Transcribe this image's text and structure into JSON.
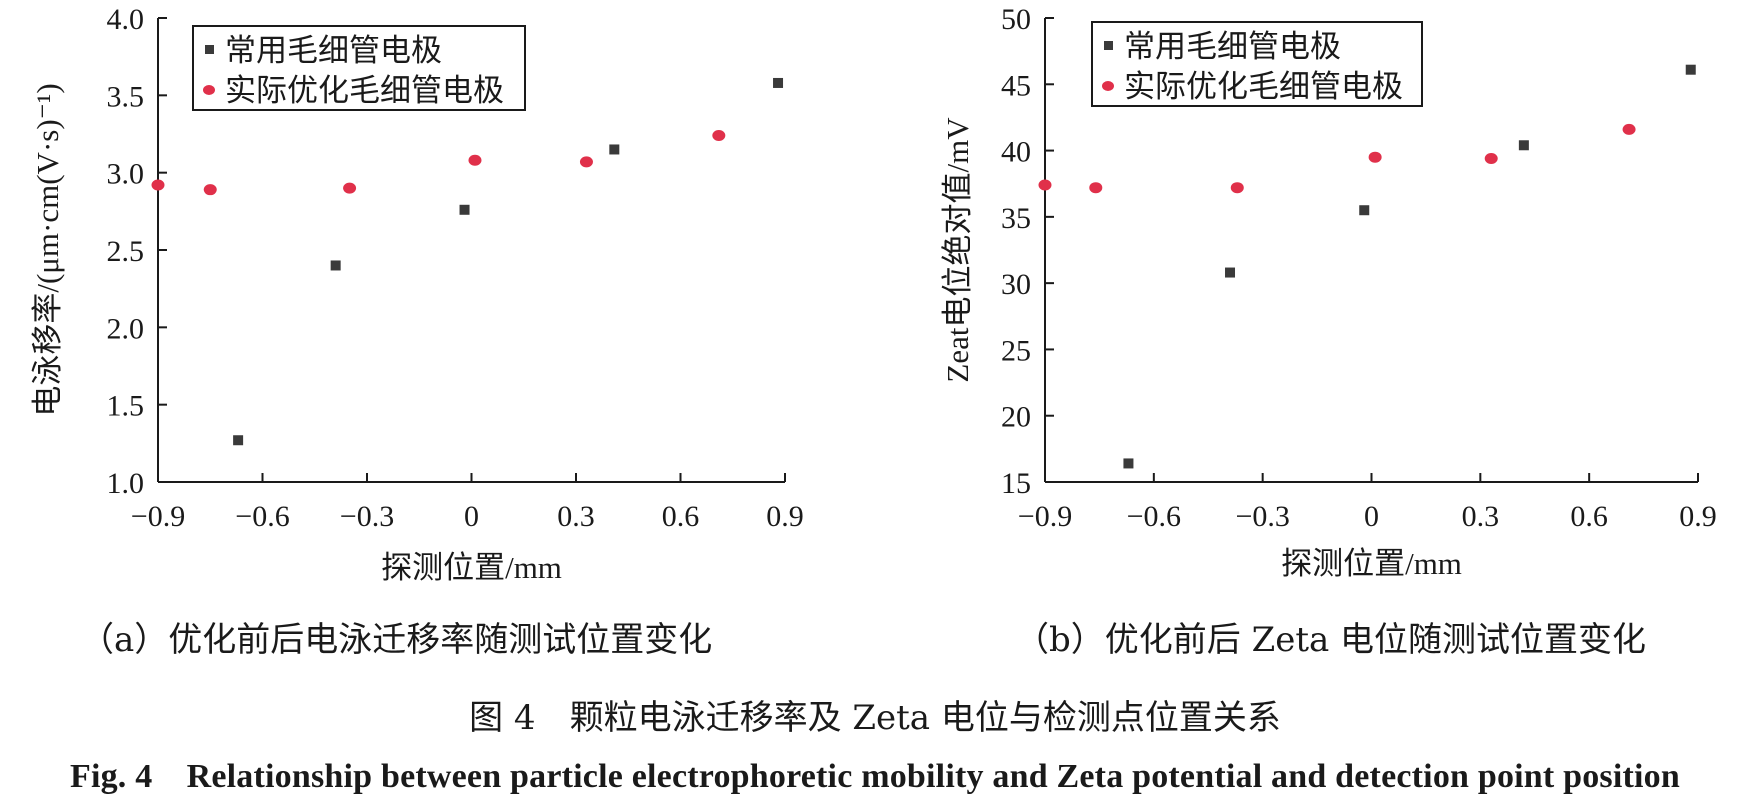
{
  "charts": [
    {
      "id": "a",
      "subcaption": "（a）优化前后电泳迁移率随测试位置变化",
      "chart_data": {
        "type": "scatter",
        "title": "",
        "xlabel": "探测位置/mm",
        "ylabel": "电泳移率/(μm·cm(V·s)⁻¹)",
        "xlim": [
          -0.9,
          0.9
        ],
        "ylim": [
          1.0,
          4.0
        ],
        "xticks": [
          -0.9,
          -0.6,
          -0.3,
          0,
          0.3,
          0.6,
          0.9
        ],
        "xtick_labels": [
          "−0.9",
          "−0.6",
          "−0.3",
          "0",
          "0.3",
          "0.6",
          "0.9"
        ],
        "yticks": [
          1.0,
          1.5,
          2.0,
          2.5,
          3.0,
          3.5,
          4.0
        ],
        "ytick_labels": [
          "1.0",
          "1.5",
          "2.0",
          "2.5",
          "3.0",
          "3.5",
          "4.0"
        ],
        "grid": false,
        "legend_position": "top-left",
        "series": [
          {
            "name": "常用毛细管电极",
            "marker": "square",
            "color": "#3a3a3a",
            "x": [
              -0.67,
              -0.39,
              -0.02,
              0.41,
              0.88
            ],
            "y": [
              1.27,
              2.4,
              2.76,
              3.15,
              3.58
            ]
          },
          {
            "name": "实际优化毛细管电极",
            "marker": "circle",
            "color": "#e0304a",
            "x": [
              -0.9,
              -0.75,
              -0.35,
              0.01,
              0.33,
              0.71
            ],
            "y": [
              2.92,
              2.89,
              2.9,
              3.08,
              3.07,
              3.24
            ]
          }
        ]
      }
    },
    {
      "id": "b",
      "subcaption": "（b）优化前后 Zeta 电位随测试位置变化",
      "chart_data": {
        "type": "scatter",
        "title": "",
        "xlabel": "探测位置/mm",
        "ylabel": "Zeat电位绝对值/mV",
        "xlim": [
          -0.9,
          0.9
        ],
        "ylim": [
          15,
          50
        ],
        "xticks": [
          -0.9,
          -0.6,
          -0.3,
          0,
          0.3,
          0.6,
          0.9
        ],
        "xtick_labels": [
          "−0.9",
          "−0.6",
          "−0.3",
          "0",
          "0.3",
          "0.6",
          "0.9"
        ],
        "yticks": [
          15,
          20,
          25,
          30,
          35,
          40,
          45,
          50
        ],
        "ytick_labels": [
          "15",
          "20",
          "25",
          "30",
          "35",
          "40",
          "45",
          "50"
        ],
        "grid": false,
        "legend_position": "top-left",
        "series": [
          {
            "name": "常用毛细管电极",
            "marker": "square",
            "color": "#3a3a3a",
            "x": [
              -0.67,
              -0.39,
              -0.02,
              0.42,
              0.88
            ],
            "y": [
              16.4,
              30.8,
              35.5,
              40.4,
              46.1
            ]
          },
          {
            "name": "实际优化毛细管电极",
            "marker": "circle",
            "color": "#e0304a",
            "x": [
              -0.9,
              -0.76,
              -0.37,
              0.01,
              0.33,
              0.71
            ],
            "y": [
              37.4,
              37.2,
              37.2,
              39.5,
              39.4,
              41.6
            ]
          }
        ]
      }
    }
  ],
  "figure_caption_cn": "图 4　颗粒电泳迁移率及 Zeta 电位与检测点位置关系",
  "figure_caption_en": "Fig. 4　Relationship between particle electrophoretic mobility and Zeta potential and detection point position"
}
